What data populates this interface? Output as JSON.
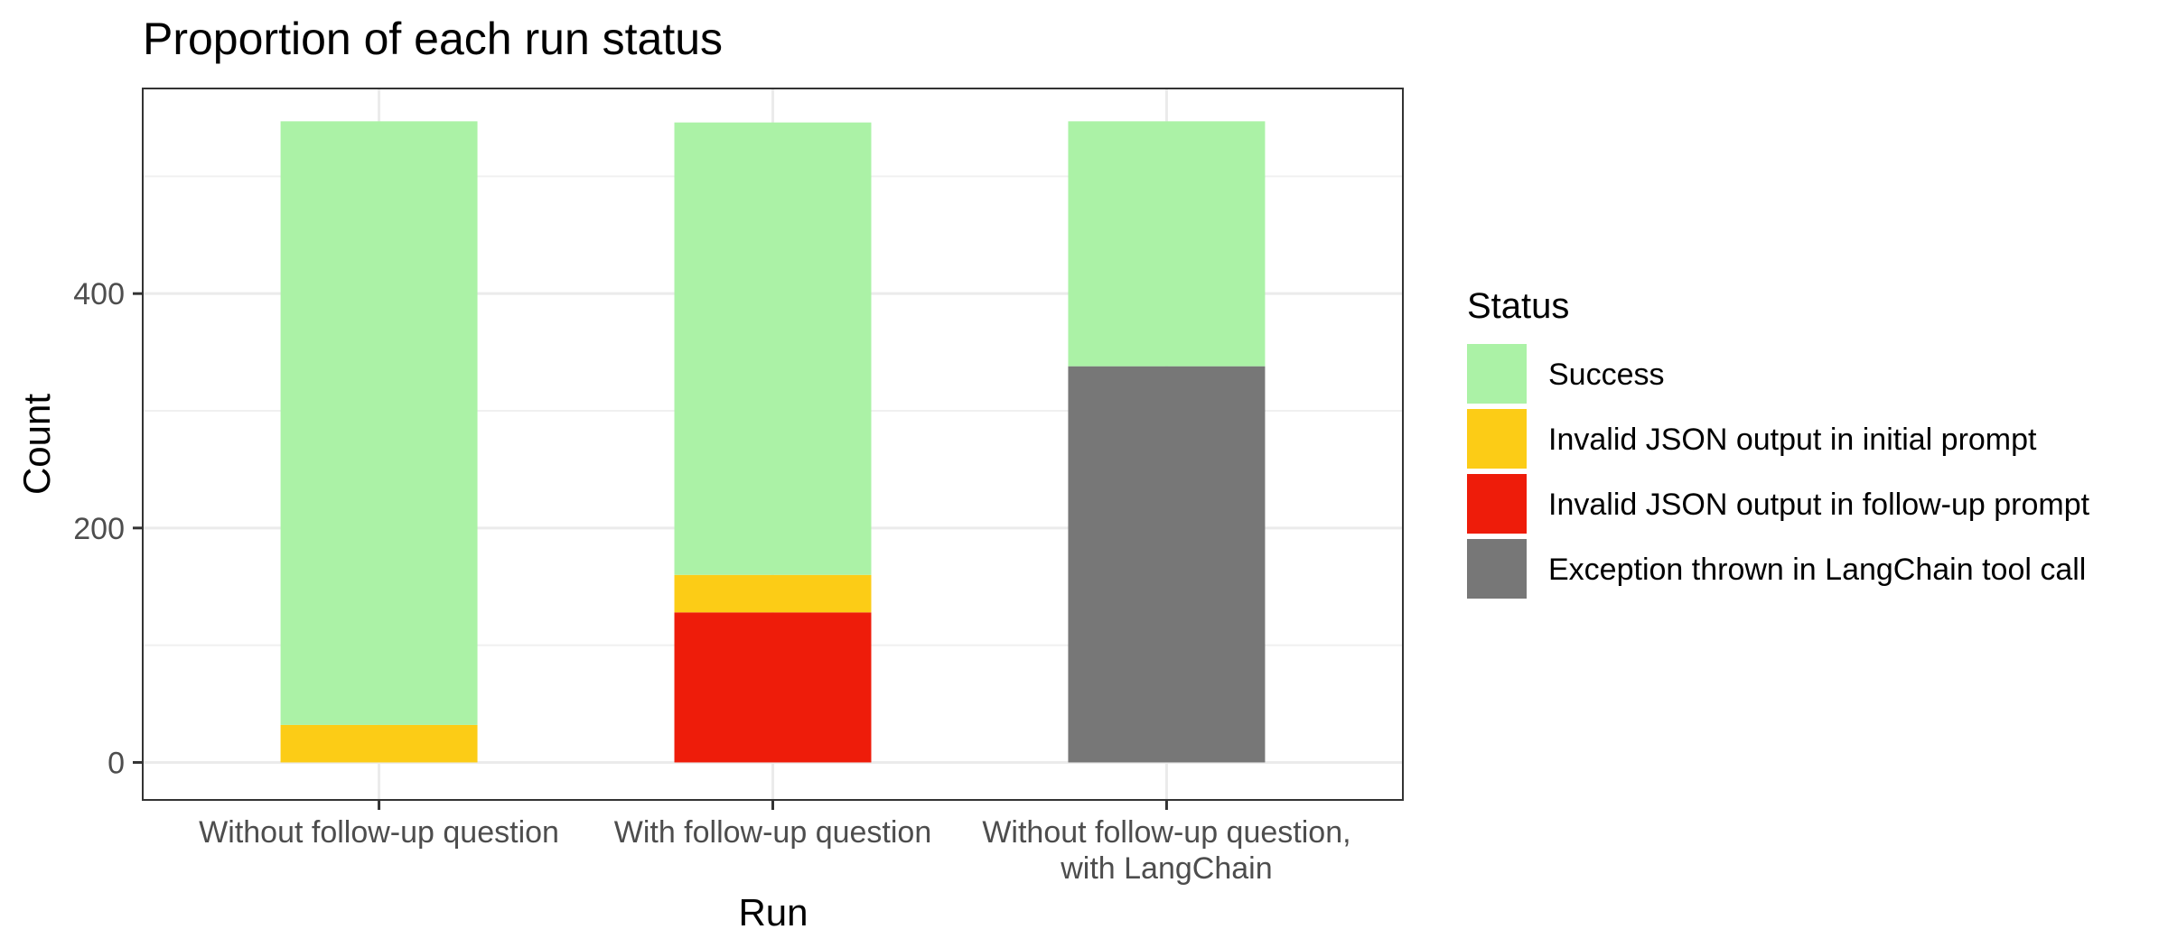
{
  "chart_data": {
    "type": "bar",
    "stacked": true,
    "title": "Proportion of each run status",
    "xlabel": "Run",
    "ylabel": "Count",
    "categories": [
      [
        "Without follow-up question"
      ],
      [
        "With follow-up question"
      ],
      [
        "Without follow-up question,",
        "with LangChain"
      ]
    ],
    "ylim": [
      -32,
      575
    ],
    "yticks": [
      0,
      200,
      400
    ],
    "grid": true,
    "legend_position": "right",
    "legend_title": "Status",
    "series": [
      {
        "name": "Exception thrown in LangChain tool call",
        "color": "#777777",
        "values": [
          0,
          0,
          338
        ]
      },
      {
        "name": "Invalid JSON output in follow-up prompt",
        "color": "#ee1c0a",
        "values": [
          0,
          128,
          0
        ]
      },
      {
        "name": "Invalid JSON output in initial prompt",
        "color": "#fccc16",
        "values": [
          32,
          32,
          0
        ]
      },
      {
        "name": "Success",
        "color": "#abf2a6",
        "values": [
          515,
          386,
          209
        ]
      }
    ],
    "legend_order": [
      "Success",
      "Invalid JSON output in initial prompt",
      "Invalid JSON output in follow-up prompt",
      "Exception thrown in LangChain tool call"
    ]
  }
}
